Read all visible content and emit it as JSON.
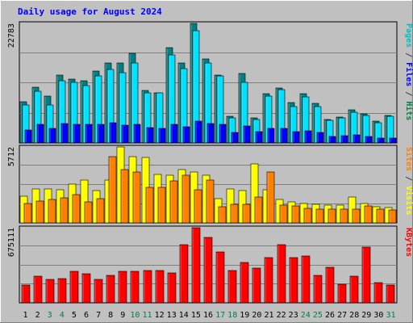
{
  "chart_data": {
    "type": "bar",
    "title": "Daily usage for August 2024",
    "categories": [
      "1",
      "2",
      "3",
      "4",
      "5",
      "6",
      "7",
      "8",
      "9",
      "10",
      "11",
      "12",
      "13",
      "14",
      "15",
      "16",
      "17",
      "18",
      "19",
      "20",
      "21",
      "22",
      "23",
      "24",
      "25",
      "26",
      "27",
      "28",
      "29",
      "30",
      "31"
    ],
    "weekend_days": [
      3,
      4,
      10,
      11,
      17,
      18,
      24,
      25,
      31
    ],
    "panels": [
      {
        "id": "top",
        "max_label": "22783",
        "ymax": 22783,
        "labels": [
          {
            "text": "Pages",
            "color": "#00bfbf"
          },
          {
            "text": " / ",
            "color": "#404040"
          },
          {
            "text": "Files",
            "color": "#0000ff"
          },
          {
            "text": " / ",
            "color": "#404040"
          },
          {
            "text": "Hits",
            "color": "#008040"
          }
        ],
        "series": [
          {
            "name": "Hits",
            "color": "#008080",
            "values": [
              7800,
              10600,
              8900,
              12900,
              12100,
              11800,
              13700,
              15200,
              15300,
              17100,
              10000,
              9600,
              18200,
              15300,
              22783,
              16000,
              13000,
              5100,
              13300,
              4700,
              9400,
              10500,
              7700,
              9400,
              7600,
              4400,
              5000,
              6300,
              5500,
              4200,
              5300
            ]
          },
          {
            "name": "Files",
            "color": "#00e0ff",
            "values": [
              7300,
              9900,
              7300,
              11900,
              11500,
              10900,
              12800,
              14000,
              13400,
              15200,
              9600,
              9500,
              16800,
              14100,
              21400,
              15200,
              12700,
              4800,
              11600,
              4500,
              8900,
              10100,
              7000,
              8700,
              7000,
              4300,
              4700,
              5900,
              5200,
              3900,
              5100
            ]
          },
          {
            "name": "Pages",
            "color": "#0000ff",
            "values": [
              2400,
              3500,
              2800,
              3700,
              3500,
              3600,
              3500,
              3800,
              3400,
              3600,
              2900,
              2800,
              3500,
              3100,
              4200,
              3700,
              3500,
              2000,
              3200,
              2100,
              2800,
              2800,
              2100,
              2300,
              2000,
              1300,
              1400,
              1500,
              1300,
              1000,
              1000
            ]
          }
        ]
      },
      {
        "id": "middle",
        "max_label": "5712",
        "ymax": 5712,
        "labels": [
          {
            "text": "Sites",
            "color": "#ff8000"
          },
          {
            "text": " / ",
            "color": "#404040"
          },
          {
            "text": "Visits",
            "color": "#ffff00"
          }
        ],
        "series": [
          {
            "name": "Visits",
            "color": "#ffff00",
            "values": [
              2000,
              2550,
              2550,
              2500,
              2900,
              3250,
              2450,
              3250,
              5712,
              5000,
              4900,
              3650,
              3600,
              4000,
              3800,
              3600,
              1850,
              2550,
              2450,
              4450,
              2500,
              1750,
              1600,
              1450,
              1400,
              1350,
              1350,
              1950,
              1450,
              1200,
              1150
            ]
          },
          {
            "name": "Sites",
            "color": "#ff8000",
            "values": [
              1450,
              1650,
              1750,
              1900,
              2150,
              1600,
              1800,
              5000,
              4000,
              3800,
              2650,
              2650,
              3150,
              3600,
              2500,
              3200,
              1200,
              1400,
              1400,
              1950,
              3800,
              1350,
              1250,
              1100,
              1050,
              1050,
              1050,
              1050,
              1250,
              1050,
              1000
            ]
          }
        ]
      },
      {
        "id": "bottom",
        "max_label": "675111",
        "ymax": 675111,
        "labels": [
          {
            "text": "KBytes",
            "color": "#ff0000"
          }
        ],
        "series": [
          {
            "name": "KBytes",
            "color": "#ff0000",
            "values": [
              160000,
              240000,
              210000,
              220000,
              280000,
              260000,
              210000,
              250000,
              280000,
              280000,
              290000,
              290000,
              270000,
              520000,
              675111,
              590000,
              460000,
              290000,
              360000,
              310000,
              410000,
              520000,
              410000,
              420000,
              250000,
              320000,
              170000,
              240000,
              500000,
              180000,
              160000
            ]
          }
        ]
      }
    ]
  }
}
